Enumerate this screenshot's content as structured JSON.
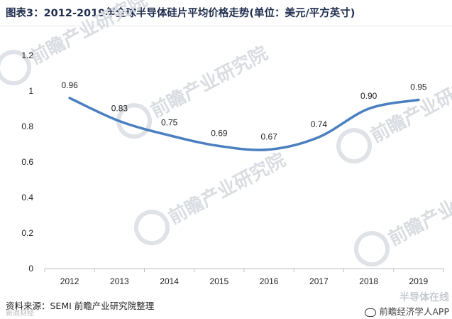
{
  "title": "图表3：2012-2019年全球半导体硅片平均价格走势(单位：美元/平方英寸)",
  "source": "资料来源：SEMI 前瞻产业研究院整理",
  "watermark": "前瞻产业研究院",
  "footer": {
    "left": "新浪财经",
    "right_top": "半导体在线",
    "right_bottom": "前瞻经济学人APP"
  },
  "colors": {
    "line": "#4a7fc0",
    "title": "#1f2d4e",
    "axis": "#bfbfbf"
  },
  "chart_data": {
    "type": "line",
    "title": "图表3：2012-2019年全球半导体硅片平均价格走势(单位：美元/平方英寸)",
    "xlabel": "",
    "ylabel": "",
    "categories": [
      "2012",
      "2013",
      "2014",
      "2015",
      "2016",
      "2017",
      "2018",
      "2019"
    ],
    "series": [
      {
        "values": [
          0.96,
          0.83,
          0.75,
          0.69,
          0.67,
          0.74,
          0.9,
          0.95
        ],
        "labels": [
          "0.96",
          "0.83",
          "0.75",
          "0.69",
          "0.67",
          "0.74",
          "0.90",
          "0.95"
        ]
      }
    ],
    "ylim": [
      0,
      1.2
    ],
    "yticks": [
      "0",
      "0.2",
      "0.4",
      "0.6",
      "0.8",
      "1",
      "1.2"
    ],
    "grid": false,
    "legend": "none"
  }
}
